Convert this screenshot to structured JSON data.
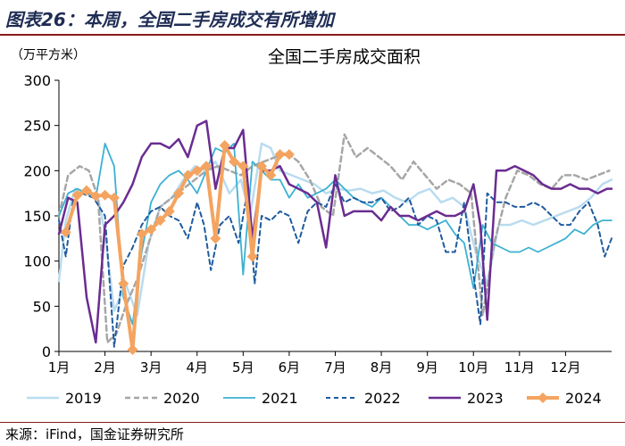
{
  "header": {
    "title": "图表26：本周，全国二手房成交有所增加"
  },
  "footer": {
    "source": "来源：iFind，国金证券研究所"
  },
  "chart_data": {
    "type": "line",
    "title": "全国二手房成交面积",
    "ylabel": "（万平方米）",
    "xlabel": "",
    "ylim": [
      0,
      300
    ],
    "yticks": [
      0,
      50,
      100,
      150,
      200,
      250,
      300
    ],
    "xlim": [
      1,
      13
    ],
    "xticks": [
      1,
      2,
      3,
      4,
      5,
      6,
      7,
      8,
      9,
      10,
      11,
      12
    ],
    "xtick_labels": [
      "1月",
      "2月",
      "3月",
      "4月",
      "5月",
      "6月",
      "7月",
      "8月",
      "9月",
      "10月",
      "11月",
      "12月"
    ],
    "grid": false,
    "legend_position": "bottom",
    "series": [
      {
        "name": "2019",
        "color": "#b9dcef",
        "dash": "",
        "width": 2.5,
        "marker": false,
        "x": [
          1.0,
          1.15,
          1.35,
          1.6,
          1.85,
          2.0,
          2.2,
          2.45,
          2.7,
          2.95,
          3.2,
          3.45,
          3.7,
          3.95,
          4.2,
          4.4,
          4.7,
          4.95,
          5.15,
          5.4,
          5.6,
          5.8,
          6.05,
          6.3,
          6.55,
          6.8,
          7.05,
          7.3,
          7.55,
          7.8,
          8.05,
          8.3,
          8.55,
          8.8,
          9.05,
          9.3,
          9.55,
          9.8,
          10.05,
          10.3,
          10.55,
          10.8,
          11.05,
          11.3,
          11.55,
          11.8,
          12.05,
          12.3,
          12.55,
          12.8,
          13.0
        ],
        "y": [
          78,
          145,
          180,
          175,
          170,
          130,
          45,
          75,
          40,
          120,
          160,
          170,
          190,
          205,
          200,
          210,
          175,
          190,
          150,
          230,
          225,
          200,
          195,
          190,
          185,
          175,
          180,
          178,
          180,
          175,
          178,
          170,
          165,
          175,
          180,
          165,
          170,
          160,
          110,
          75,
          140,
          140,
          145,
          140,
          145,
          150,
          155,
          160,
          170,
          185,
          190
        ]
      },
      {
        "name": "2020",
        "color": "#a6a6a6",
        "dash": "6,4",
        "width": 2.5,
        "marker": false,
        "x": [
          1.0,
          1.2,
          1.45,
          1.65,
          1.85,
          2.05,
          2.25,
          2.45,
          2.7,
          2.95,
          3.2,
          3.45,
          3.7,
          3.95,
          4.2,
          4.45,
          4.7,
          4.95,
          5.2,
          5.45,
          5.7,
          5.95,
          6.2,
          6.45,
          6.7,
          6.95,
          7.2,
          7.45,
          7.7,
          7.95,
          8.2,
          8.45,
          8.7,
          8.95,
          9.2,
          9.45,
          9.7,
          9.95,
          10.2,
          10.45,
          10.7,
          10.95,
          11.2,
          11.45,
          11.7,
          11.95,
          12.2,
          12.45,
          12.7,
          12.95
        ],
        "y": [
          150,
          195,
          205,
          200,
          170,
          10,
          20,
          50,
          80,
          120,
          160,
          170,
          180,
          190,
          200,
          205,
          200,
          195,
          205,
          210,
          215,
          220,
          210,
          190,
          160,
          150,
          240,
          215,
          225,
          215,
          205,
          190,
          210,
          195,
          180,
          190,
          185,
          175,
          40,
          120,
          170,
          200,
          195,
          185,
          180,
          195,
          195,
          190,
          195,
          200
        ]
      },
      {
        "name": "2021",
        "color": "#3cb1d2",
        "dash": "",
        "width": 1.8,
        "marker": false,
        "x": [
          1.0,
          1.2,
          1.4,
          1.6,
          1.8,
          2.0,
          2.2,
          2.4,
          2.6,
          2.8,
          3.0,
          3.2,
          3.4,
          3.6,
          3.8,
          4.0,
          4.2,
          4.4,
          4.6,
          4.8,
          5.0,
          5.2,
          5.4,
          5.6,
          5.8,
          6.0,
          6.2,
          6.4,
          6.6,
          6.8,
          7.0,
          7.2,
          7.4,
          7.6,
          7.8,
          8.0,
          8.2,
          8.4,
          8.6,
          8.8,
          9.0,
          9.2,
          9.4,
          9.6,
          9.8,
          10.0,
          10.2,
          10.4,
          10.6,
          10.8,
          11.0,
          11.2,
          11.4,
          11.6,
          11.8,
          12.0,
          12.2,
          12.4,
          12.6,
          12.8,
          13.0
        ],
        "y": [
          150,
          175,
          180,
          175,
          170,
          230,
          205,
          60,
          30,
          110,
          165,
          185,
          195,
          200,
          190,
          175,
          200,
          225,
          220,
          230,
          85,
          210,
          200,
          190,
          190,
          170,
          185,
          170,
          175,
          180,
          190,
          180,
          170,
          165,
          160,
          170,
          160,
          150,
          140,
          140,
          135,
          140,
          145,
          130,
          120,
          70,
          140,
          120,
          115,
          110,
          110,
          115,
          110,
          115,
          120,
          125,
          135,
          130,
          140,
          145,
          145
        ]
      },
      {
        "name": "2022",
        "color": "#1f5b9e",
        "dash": "5,4",
        "width": 2.0,
        "marker": false,
        "x": [
          1.0,
          1.15,
          1.3,
          1.5,
          1.75,
          2.0,
          2.2,
          2.4,
          2.6,
          2.8,
          3.0,
          3.2,
          3.4,
          3.6,
          3.8,
          4.0,
          4.15,
          4.3,
          4.5,
          4.7,
          4.9,
          5.1,
          5.25,
          5.4,
          5.6,
          5.8,
          6.0,
          6.2,
          6.4,
          6.6,
          6.8,
          7.0,
          7.2,
          7.4,
          7.6,
          7.8,
          8.0,
          8.2,
          8.4,
          8.6,
          8.8,
          9.0,
          9.2,
          9.4,
          9.6,
          9.8,
          10.0,
          10.15,
          10.3,
          10.5,
          10.7,
          10.9,
          11.1,
          11.3,
          11.5,
          11.7,
          11.9,
          12.1,
          12.3,
          12.5,
          12.7,
          12.85,
          13.0
        ],
        "y": [
          145,
          105,
          165,
          175,
          170,
          150,
          5,
          95,
          115,
          140,
          155,
          160,
          150,
          145,
          125,
          165,
          140,
          90,
          140,
          150,
          120,
          180,
          75,
          150,
          145,
          155,
          150,
          120,
          155,
          165,
          160,
          185,
          165,
          170,
          165,
          165,
          170,
          155,
          160,
          170,
          140,
          150,
          145,
          110,
          110,
          165,
          85,
          30,
          175,
          165,
          165,
          160,
          160,
          165,
          160,
          150,
          140,
          140,
          155,
          165,
          140,
          105,
          125
        ]
      },
      {
        "name": "2023",
        "color": "#6a2c91",
        "dash": "",
        "width": 2.5,
        "marker": false,
        "x": [
          1.0,
          1.2,
          1.4,
          1.6,
          1.8,
          2.0,
          2.2,
          2.4,
          2.6,
          2.8,
          3.0,
          3.2,
          3.4,
          3.6,
          3.8,
          4.0,
          4.2,
          4.4,
          4.6,
          4.8,
          5.0,
          5.2,
          5.4,
          5.6,
          5.8,
          6.0,
          6.2,
          6.4,
          6.6,
          6.8,
          7.0,
          7.2,
          7.4,
          7.6,
          7.8,
          8.0,
          8.2,
          8.4,
          8.6,
          8.8,
          9.0,
          9.2,
          9.4,
          9.6,
          9.8,
          10.0,
          10.15,
          10.3,
          10.5,
          10.7,
          10.9,
          11.1,
          11.3,
          11.5,
          11.7,
          11.9,
          12.1,
          12.3,
          12.5,
          12.7,
          12.9,
          13.0
        ],
        "y": [
          130,
          170,
          165,
          60,
          10,
          140,
          150,
          165,
          185,
          215,
          230,
          230,
          225,
          235,
          215,
          250,
          255,
          180,
          225,
          225,
          245,
          125,
          200,
          200,
          205,
          185,
          180,
          175,
          165,
          115,
          195,
          150,
          155,
          155,
          155,
          145,
          160,
          150,
          150,
          145,
          150,
          155,
          150,
          150,
          155,
          185,
          140,
          35,
          200,
          200,
          205,
          200,
          195,
          185,
          180,
          180,
          185,
          180,
          180,
          175,
          180,
          180
        ]
      },
      {
        "name": "2024",
        "color": "#f4a460",
        "dash": "",
        "width": 4,
        "marker": true,
        "x": [
          1.15,
          1.4,
          1.6,
          1.8,
          2.0,
          2.2,
          2.4,
          2.6,
          2.8,
          3.0,
          3.2,
          3.4,
          3.6,
          3.8,
          4.0,
          4.2,
          4.4,
          4.6,
          4.8,
          5.0,
          5.2,
          5.4,
          5.6,
          5.8,
          6.0
        ],
        "y": [
          132,
          173,
          178,
          172,
          173,
          170,
          75,
          2,
          130,
          135,
          145,
          155,
          175,
          195,
          200,
          205,
          125,
          228,
          210,
          205,
          105,
          205,
          195,
          218,
          218
        ]
      }
    ]
  }
}
